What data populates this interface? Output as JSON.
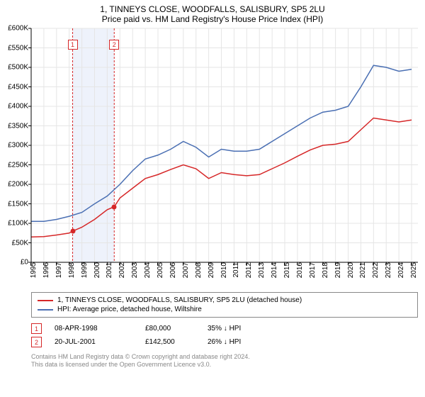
{
  "title": "1, TINNEYS CLOSE, WOODFALLS, SALISBURY, SP5 2LU",
  "subtitle": "Price paid vs. HM Land Registry's House Price Index (HPI)",
  "chart": {
    "type": "line",
    "background_color": "#ffffff",
    "grid_color": "#e5e5e5",
    "axis_color": "#000000",
    "highlight_band": {
      "x_from": 1998.27,
      "x_to": 2001.55,
      "fill": "#eef2fb"
    },
    "xlim": [
      1995,
      2025.5
    ],
    "ylim": [
      0,
      600000
    ],
    "xticks": [
      1995,
      1996,
      1997,
      1998,
      1999,
      2000,
      2001,
      2002,
      2003,
      2004,
      2005,
      2006,
      2007,
      2008,
      2009,
      2010,
      2011,
      2012,
      2013,
      2014,
      2015,
      2016,
      2017,
      2018,
      2019,
      2020,
      2021,
      2022,
      2023,
      2024,
      2025
    ],
    "yticks": [
      0,
      50000,
      100000,
      150000,
      200000,
      250000,
      300000,
      350000,
      400000,
      450000,
      500000,
      550000,
      600000
    ],
    "ytick_labels": [
      "£0",
      "£50K",
      "£100K",
      "£150K",
      "£200K",
      "£250K",
      "£300K",
      "£350K",
      "£400K",
      "£450K",
      "£500K",
      "£550K",
      "£600K"
    ],
    "label_fontsize": 10,
    "line_width": 1.5,
    "series": [
      {
        "name": "property",
        "label": "1, TINNEYS CLOSE, WOODFALLS, SALISBURY, SP5 2LU (detached house)",
        "color": "#d62728",
        "data": [
          [
            1995,
            65000
          ],
          [
            1996,
            66000
          ],
          [
            1997,
            70000
          ],
          [
            1998,
            75000
          ],
          [
            1998.27,
            80000
          ],
          [
            1999,
            90000
          ],
          [
            2000,
            110000
          ],
          [
            2001,
            135000
          ],
          [
            2001.55,
            142500
          ],
          [
            2002,
            165000
          ],
          [
            2003,
            190000
          ],
          [
            2004,
            215000
          ],
          [
            2005,
            225000
          ],
          [
            2006,
            238000
          ],
          [
            2007,
            250000
          ],
          [
            2008,
            240000
          ],
          [
            2009,
            215000
          ],
          [
            2010,
            230000
          ],
          [
            2011,
            225000
          ],
          [
            2012,
            222000
          ],
          [
            2013,
            225000
          ],
          [
            2014,
            240000
          ],
          [
            2015,
            255000
          ],
          [
            2016,
            272000
          ],
          [
            2017,
            288000
          ],
          [
            2018,
            300000
          ],
          [
            2019,
            303000
          ],
          [
            2020,
            310000
          ],
          [
            2021,
            340000
          ],
          [
            2022,
            370000
          ],
          [
            2023,
            365000
          ],
          [
            2024,
            360000
          ],
          [
            2025,
            365000
          ]
        ]
      },
      {
        "name": "hpi",
        "label": "HPI: Average price, detached house, Wiltshire",
        "color": "#4a6fb3",
        "data": [
          [
            1995,
            105000
          ],
          [
            1996,
            105000
          ],
          [
            1997,
            110000
          ],
          [
            1998,
            118000
          ],
          [
            1999,
            128000
          ],
          [
            2000,
            150000
          ],
          [
            2001,
            170000
          ],
          [
            2002,
            200000
          ],
          [
            2003,
            235000
          ],
          [
            2004,
            265000
          ],
          [
            2005,
            275000
          ],
          [
            2006,
            290000
          ],
          [
            2007,
            310000
          ],
          [
            2008,
            295000
          ],
          [
            2009,
            270000
          ],
          [
            2010,
            290000
          ],
          [
            2011,
            285000
          ],
          [
            2012,
            285000
          ],
          [
            2013,
            290000
          ],
          [
            2014,
            310000
          ],
          [
            2015,
            330000
          ],
          [
            2016,
            350000
          ],
          [
            2017,
            370000
          ],
          [
            2018,
            385000
          ],
          [
            2019,
            390000
          ],
          [
            2020,
            400000
          ],
          [
            2021,
            450000
          ],
          [
            2022,
            505000
          ],
          [
            2023,
            500000
          ],
          [
            2024,
            490000
          ],
          [
            2025,
            495000
          ]
        ]
      }
    ],
    "event_vlines": [
      {
        "x": 1998.27,
        "color": "#d62728",
        "dash": "3,2"
      },
      {
        "x": 2001.55,
        "color": "#d62728",
        "dash": "3,2"
      }
    ],
    "event_markers": [
      {
        "num": "1",
        "x": 1998.27,
        "y_label_top": 545000,
        "dot_y": 80000,
        "color": "#d62728"
      },
      {
        "num": "2",
        "x": 2001.55,
        "y_label_top": 545000,
        "dot_y": 142500,
        "color": "#d62728"
      }
    ]
  },
  "legend": {
    "border_color": "#888888",
    "items": [
      {
        "color": "#d62728",
        "label": "1, TINNEYS CLOSE, WOODFALLS, SALISBURY, SP5 2LU (detached house)"
      },
      {
        "color": "#4a6fb3",
        "label": "HPI: Average price, detached house, Wiltshire"
      }
    ]
  },
  "events_table": {
    "rows": [
      {
        "num": "1",
        "color": "#d62728",
        "date": "08-APR-1998",
        "price": "£80,000",
        "delta": "35% ↓ HPI"
      },
      {
        "num": "2",
        "color": "#d62728",
        "date": "20-JUL-2001",
        "price": "£142,500",
        "delta": "26% ↓ HPI"
      }
    ]
  },
  "attribution": {
    "line1": "Contains HM Land Registry data © Crown copyright and database right 2024.",
    "line2": "This data is licensed under the Open Government Licence v3.0."
  }
}
